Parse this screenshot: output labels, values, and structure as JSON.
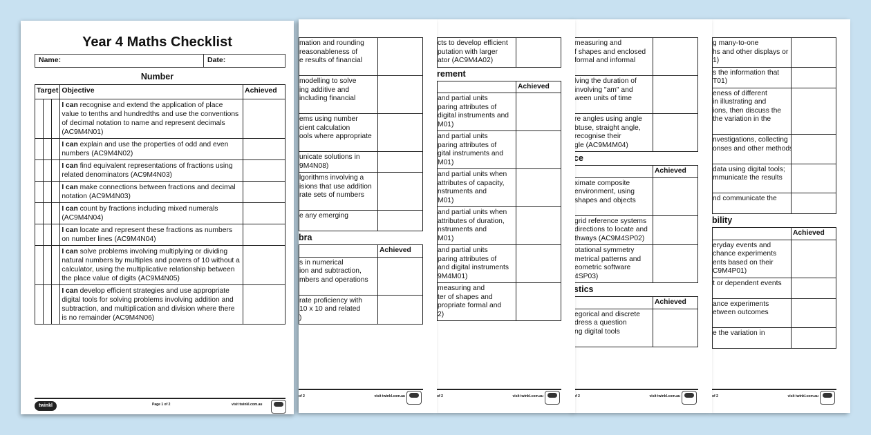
{
  "page1": {
    "title": "Year 4 Maths Checklist",
    "name_label": "Name:",
    "date_label": "Date:",
    "section": "Number",
    "headers": {
      "target": "Target",
      "objective": "Objective",
      "achieved": "Achieved"
    },
    "rows": [
      {
        "lead": "I can",
        "text": " recognise and extend the application of place value to tenths and hundredths and use the conventions of decimal notation to name and represent decimals (AC9M4N01)"
      },
      {
        "lead": "I can",
        "text": " explain and use the properties of odd and even numbers (AC9M4N02)"
      },
      {
        "lead": "I can",
        "text": " find equivalent representations of fractions using related denominators (AC9M4N03)"
      },
      {
        "lead": "I can",
        "text": " make connections between fractions and decimal notation (AC9M4N03)"
      },
      {
        "lead": "I can",
        "text": " count by fractions including mixed numerals (AC9M4N04)"
      },
      {
        "lead": "I can",
        "text": " locate and represent these fractions as numbers on number lines (AC9M4N04)"
      },
      {
        "lead": "I can",
        "text": " solve problems involving multiplying or dividing natural numbers by multiples and powers of 10 without a calculator, using the multiplicative relationship between the place value of digits (AC9M4N05)"
      },
      {
        "lead": "I can",
        "text": " develop efficient strategies and use appropriate digital tools for solving problems involving addition and subtraction, and multiplication and division where there is no remainder (AC9M4N06)"
      }
    ],
    "footer": {
      "logo": "twinkl",
      "page": "Page 1 of 2",
      "url": "visit twinkl.com.au"
    }
  },
  "back_pages": [
    {
      "blocks": [
        {
          "type": "row",
          "text": "mation and rounding\nreasonableness of\ne results of financial\n "
        },
        {
          "type": "row",
          "text": "modelling to solve\ning additive and\nincluding financial\n "
        },
        {
          "type": "row",
          "text": "ems using number\ncient calculation\nools where appropriate\n "
        },
        {
          "type": "row",
          "text": "unicate solutions in\n9M4N08)"
        },
        {
          "type": "row",
          "text": "lgorithms involving a\nisions that use addition\nrate sets of numbers\n "
        },
        {
          "type": "row",
          "text": "e any emerging\n "
        },
        {
          "type": "heading",
          "text": "bra"
        },
        {
          "type": "header",
          "text": "Achieved"
        },
        {
          "type": "row",
          "text": "s in numerical\nion and subtraction,\nmbers and operations\n "
        },
        {
          "type": "row",
          "text": "rate proficiency with\n10 x 10 and related\n)"
        }
      ],
      "footer": "of 2",
      "url": "visit twinkl.com.au"
    },
    {
      "blocks": [
        {
          "type": "row",
          "text": "cts to develop efficient\nputation with larger\nator (AC9M4A02)"
        },
        {
          "type": "heading",
          "text": "rement"
        },
        {
          "type": "header",
          "text": "Achieved"
        },
        {
          "type": "row",
          "text": "and partial units\nparing attributes of\ndigital instruments and\nM01)"
        },
        {
          "type": "row",
          "text": "and partial units\nparing attributes of\ngital instruments and\nM01)"
        },
        {
          "type": "row",
          "text": "and partial units when\nattributes of capacity,\nnstruments and\nM01)"
        },
        {
          "type": "row",
          "text": "and partial units when\nattributes of duration,\nnstruments and\nM01)"
        },
        {
          "type": "row",
          "text": "and partial units\nparing attributes of\nand digital instruments\n9M4M01)"
        },
        {
          "type": "row",
          "text": "measuring and\nter of shapes and\npropriate formal and\n2)"
        }
      ],
      "footer": "of 2",
      "url": "visit twinkl.com.au"
    },
    {
      "blocks": [
        {
          "type": "row",
          "text": "measuring and\nf shapes and enclosed\nformal and informal\n "
        },
        {
          "type": "row",
          "text": "lving the duration of\ninvolving \"am\" and\nween units of time\n "
        },
        {
          "type": "row",
          "text": "re angles using angle\nbtuse, straight angle,\nrecognise their\ngle (AC9M4M04)"
        },
        {
          "type": "heading",
          "text": "ce"
        },
        {
          "type": "header",
          "text": "Achieved"
        },
        {
          "type": "row",
          "text": "ximate composite\nenvironment, using\nshapes and objects\n "
        },
        {
          "type": "row",
          "text": "grid reference systems\ndirections to locate and\nthways (AC9M4SP02)"
        },
        {
          "type": "row",
          "text": "otational symmetry\nmetrical patterns and\neometric software\n4SP03)"
        },
        {
          "type": "heading",
          "text": "stics"
        },
        {
          "type": "header",
          "text": "Achieved"
        },
        {
          "type": "row",
          "text": "egorical and discrete\ndress a question\nng digital tools\n "
        }
      ],
      "footer": "of 2",
      "url": "visit twinkl.com.au"
    },
    {
      "blocks": [
        {
          "type": "row",
          "text": "g many-to-one\nhs and other displays or\n1)"
        },
        {
          "type": "row",
          "text": "s the information that\nT01)"
        },
        {
          "type": "row",
          "text": "eness of different\nin illustrating and\nions, then discuss the\nthe variation in the\n "
        },
        {
          "type": "row",
          "text": "nvestigations, collecting\nonses and other methods\n "
        },
        {
          "type": "row",
          "text": "data using digital tools;\nmmunicate the results\n "
        },
        {
          "type": "row",
          "text": "nd communicate the\n "
        },
        {
          "type": "heading",
          "text": "bility"
        },
        {
          "type": "header",
          "text": "Achieved"
        },
        {
          "type": "row",
          "text": "eryday events and\nchance experiments\nents based on their\nC9M4P01)"
        },
        {
          "type": "row",
          "text": "t or dependent events\n "
        },
        {
          "type": "row",
          "text": "ance experiments\netween outcomes\n "
        },
        {
          "type": "row",
          "text": "e the variation in\n "
        }
      ],
      "footer": "of 2",
      "url": "visit twinkl.com.au"
    }
  ],
  "colors": {
    "background": "#c8e1f1",
    "page": "#ffffff",
    "ink": "#111111"
  }
}
